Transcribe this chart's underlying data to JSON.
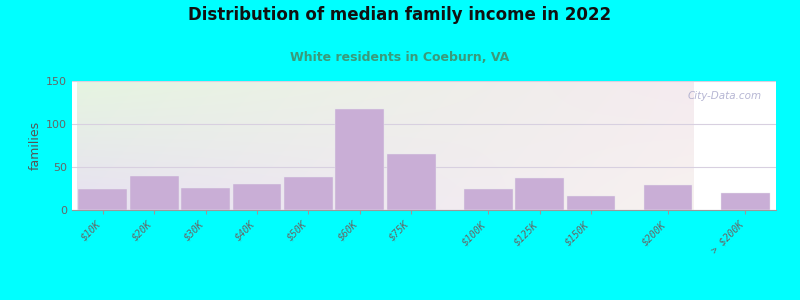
{
  "title": "Distribution of median family income in 2022",
  "subtitle": "White residents in Coeburn, VA",
  "ylabel": "families",
  "categories": [
    "$10K",
    "$20K",
    "$30K",
    "$40K",
    "$50K",
    "$60K",
    "$75K",
    "$100K",
    "$125K",
    "$150K",
    "$200K",
    "> $200K"
  ],
  "values": [
    25,
    40,
    26,
    30,
    38,
    118,
    65,
    25,
    37,
    16,
    29,
    20
  ],
  "bar_color": "#c9aed6",
  "bar_edge_color": "#e8e8ee",
  "background_outer": "#00ffff",
  "title_color": "#111111",
  "subtitle_color": "#3a9a7a",
  "ylabel_color": "#555555",
  "tick_color": "#666666",
  "grid_color": "#d8d0e0",
  "watermark_color": "#aaaacc",
  "ylim": [
    0,
    150
  ],
  "yticks": [
    0,
    50,
    100,
    150
  ],
  "bar_groups": [
    [
      0,
      1,
      2,
      3,
      4,
      5,
      6
    ],
    [
      7,
      8,
      9
    ],
    [
      10
    ],
    [
      11
    ]
  ],
  "group_gaps": [
    0.25,
    0.6,
    0.6,
    0.6
  ]
}
